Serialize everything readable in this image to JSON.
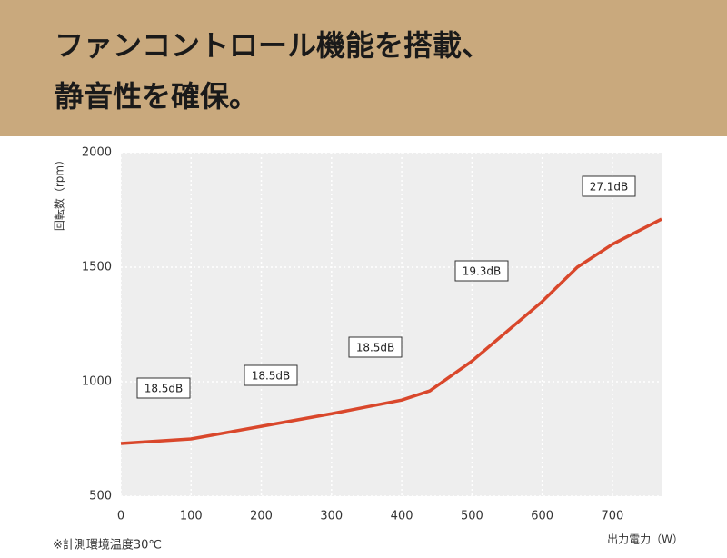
{
  "header": {
    "line1": "ファンコントロール機能を搭載、",
    "line2": "静音性を確保。"
  },
  "chart_data": {
    "type": "line",
    "y_label": "回転数（rpm）",
    "x_label": "出力電力（W）",
    "x": [
      0,
      100,
      200,
      300,
      400,
      440,
      500,
      600,
      650,
      700,
      770
    ],
    "series": [
      {
        "color": "#d9472b",
        "values": [
          730,
          750,
          805,
          860,
          920,
          960,
          1090,
          1350,
          1500,
          1600,
          1710
        ]
      }
    ],
    "xlim": [
      0,
      770
    ],
    "xticks": [
      0,
      100,
      200,
      300,
      400,
      500,
      600,
      700
    ],
    "ylim": [
      500,
      2000
    ],
    "yticks": [
      500,
      1000,
      1500,
      2000
    ],
    "grid": true,
    "annotations": [
      "18.5dB",
      "18.5dB",
      "18.5dB",
      "19.3dB",
      "27.1dB"
    ],
    "note": "※計測環境温度30℃"
  }
}
